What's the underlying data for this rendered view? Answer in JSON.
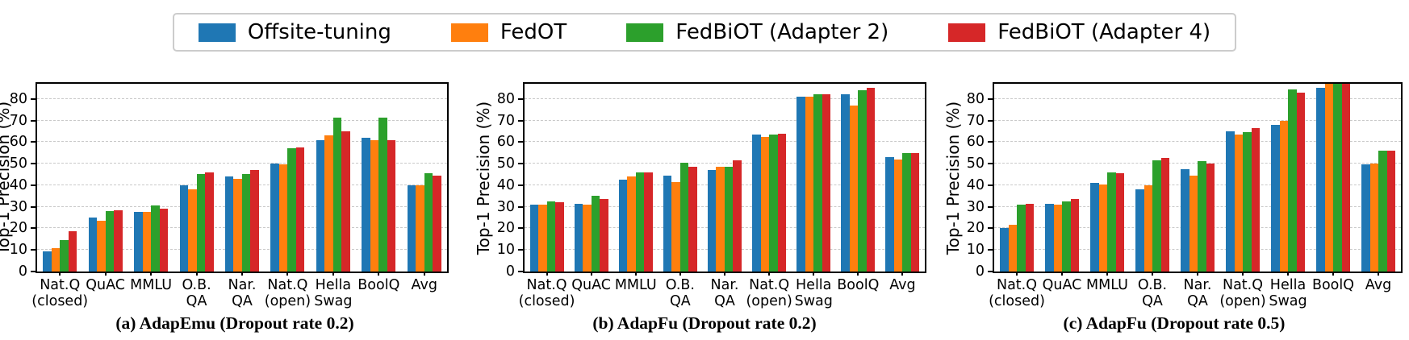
{
  "legend": {
    "entries": [
      {
        "label": "Offsite-tuning",
        "color": "#1f77b4"
      },
      {
        "label": "FedOT",
        "color": "#ff7f0e"
      },
      {
        "label": "FedBiOT (Adapter 2)",
        "color": "#2ca02c"
      },
      {
        "label": "FedBiOT (Adapter 4)",
        "color": "#d62728"
      }
    ],
    "position": "top center, shared by all subplots"
  },
  "chart_data": [
    {
      "type": "bar",
      "title": "(a) AdapEmu (Dropout rate 0.2)",
      "ylabel": "Top-1 Precision (%)",
      "xlabel": "",
      "ylim": [
        0,
        87
      ],
      "yticks": [
        0,
        10,
        20,
        30,
        40,
        50,
        60,
        70,
        80
      ],
      "grid": "horizontal dashed",
      "categories": [
        "Nat.Q\n(closed)",
        "QuAC",
        "MMLU",
        "O.B.\nQA",
        "Nar.\nQA",
        "Nat.Q\n(open)",
        "Hella\nSwag",
        "BoolQ",
        "Avg"
      ],
      "series": [
        {
          "name": "Offsite-tuning",
          "color": "#1f77b4",
          "values": [
            9.5,
            25,
            27.5,
            40,
            44,
            50,
            61,
            62,
            40
          ]
        },
        {
          "name": "FedOT",
          "color": "#ff7f0e",
          "values": [
            11,
            23.5,
            27.5,
            38,
            43,
            49.5,
            63,
            61,
            40
          ]
        },
        {
          "name": "FedBiOT (Adapter 2)",
          "color": "#2ca02c",
          "values": [
            14.5,
            28,
            30.5,
            45,
            45,
            57,
            71.5,
            71.5,
            45.5
          ]
        },
        {
          "name": "FedBiOT (Adapter 4)",
          "color": "#d62728",
          "values": [
            18.5,
            28.5,
            29,
            46,
            47,
            57.5,
            65,
            61,
            44.5
          ]
        }
      ]
    },
    {
      "type": "bar",
      "title": "(b) AdapFu (Dropout rate 0.2)",
      "ylabel": "Top-1 Precision (%)",
      "xlabel": "",
      "ylim": [
        0,
        87
      ],
      "yticks": [
        0,
        10,
        20,
        30,
        40,
        50,
        60,
        70,
        80
      ],
      "grid": "horizontal dashed",
      "categories": [
        "Nat.Q\n(closed)",
        "QuAC",
        "MMLU",
        "O.B.\nQA",
        "Nar.\nQA",
        "Nat.Q\n(open)",
        "Hella\nSwag",
        "BoolQ",
        "Avg"
      ],
      "series": [
        {
          "name": "Offsite-tuning",
          "color": "#1f77b4",
          "values": [
            31,
            31.5,
            42.5,
            44.5,
            47,
            63.5,
            81,
            82,
            53
          ]
        },
        {
          "name": "FedOT",
          "color": "#ff7f0e",
          "values": [
            31,
            31,
            44,
            41.5,
            48.5,
            62.5,
            81,
            77,
            52
          ]
        },
        {
          "name": "FedBiOT (Adapter 2)",
          "color": "#2ca02c",
          "values": [
            32.5,
            35,
            46,
            50.5,
            48.5,
            63.5,
            82,
            84,
            55
          ]
        },
        {
          "name": "FedBiOT (Adapter 4)",
          "color": "#d62728",
          "values": [
            32,
            33.5,
            46,
            48.5,
            51.5,
            64,
            82,
            85,
            55
          ]
        }
      ]
    },
    {
      "type": "bar",
      "title": "(c) AdapFu (Dropout rate 0.5)",
      "ylabel": "Top-1 Precision (%)",
      "xlabel": "",
      "ylim": [
        0,
        87
      ],
      "yticks": [
        0,
        10,
        20,
        30,
        40,
        50,
        60,
        70,
        80
      ],
      "grid": "horizontal dashed",
      "categories": [
        "Nat.Q\n(closed)",
        "QuAC",
        "MMLU",
        "O.B.\nQA",
        "Nar.\nQA",
        "Nat.Q\n(open)",
        "Hella\nSwag",
        "BoolQ",
        "Avg"
      ],
      "series": [
        {
          "name": "Offsite-tuning",
          "color": "#1f77b4",
          "values": [
            20,
            31.5,
            41,
            38,
            47.5,
            65,
            68,
            85,
            49.5
          ]
        },
        {
          "name": "FedOT",
          "color": "#ff7f0e",
          "values": [
            21.5,
            31,
            40.5,
            40,
            44.5,
            63.5,
            70,
            87.5,
            50
          ]
        },
        {
          "name": "FedBiOT (Adapter 2)",
          "color": "#2ca02c",
          "values": [
            31,
            32.5,
            46,
            51.5,
            51,
            64.5,
            84.5,
            87.5,
            56
          ]
        },
        {
          "name": "FedBiOT (Adapter 4)",
          "color": "#d62728",
          "values": [
            31.5,
            33.5,
            45.5,
            52.5,
            50,
            66.5,
            83,
            87.5,
            56
          ]
        }
      ]
    }
  ]
}
